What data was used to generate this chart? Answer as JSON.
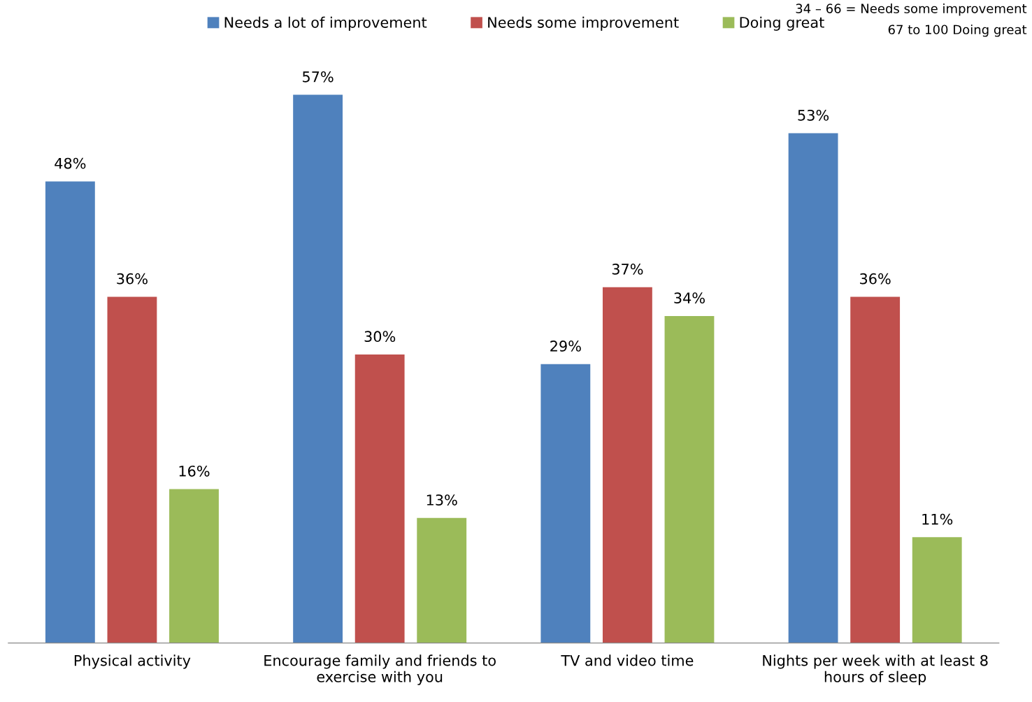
{
  "chart_data": {
    "type": "bar",
    "categories": [
      "Physical activity",
      "Encourage family and friends to\nexercise with you",
      "TV and video time",
      "Nights per week with at least 8\nhours of sleep"
    ],
    "series": [
      {
        "name": "Needs a lot of improvement",
        "color": "#4f81bd",
        "values": [
          48,
          57,
          29,
          53
        ],
        "value_labels": [
          "48%",
          "57%",
          "29%",
          "53%"
        ]
      },
      {
        "name": "Needs some improvement",
        "color": "#c0504d",
        "values": [
          36,
          30,
          37,
          36
        ],
        "value_labels": [
          "36%",
          "30%",
          "37%",
          "36%"
        ]
      },
      {
        "name": "Doing great",
        "color": "#9bbb59",
        "values": [
          16,
          13,
          34,
          11
        ],
        "value_labels": [
          "16%",
          "13%",
          "34%",
          "11%"
        ]
      }
    ],
    "legend": "top",
    "grid": false,
    "annotations": [
      "34 – 66 = Needs some improvement",
      "67 to 100 Doing great"
    ]
  }
}
